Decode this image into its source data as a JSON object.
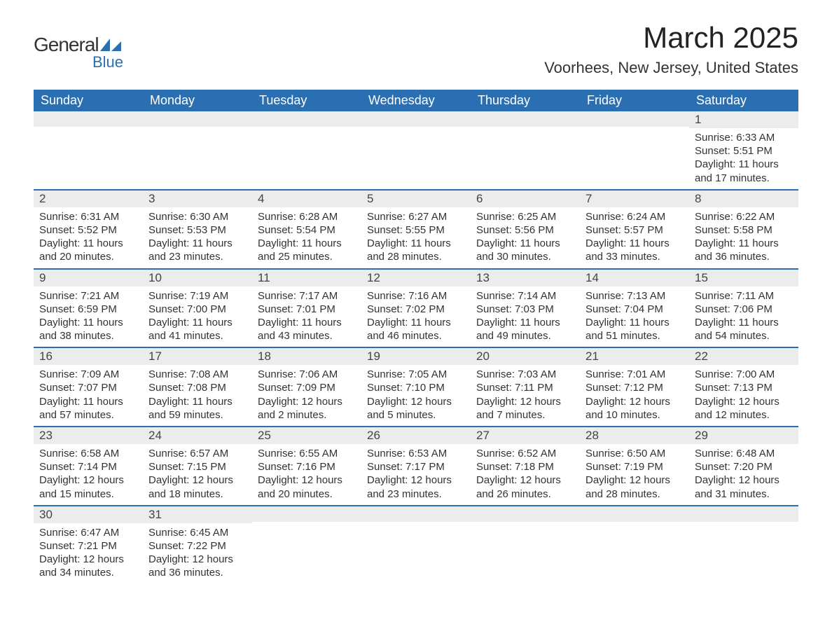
{
  "logo": {
    "text1": "General",
    "text2": "Blue",
    "shape_color": "#2b6fb3"
  },
  "title": "March 2025",
  "subtitle": "Voorhees, New Jersey, United States",
  "colors": {
    "header_bg": "#2b6fb3",
    "header_text": "#ffffff",
    "daynum_bg": "#ececec",
    "row_border": "#2b6fb3",
    "body_text": "#333333",
    "background": "#ffffff"
  },
  "weekdays": [
    "Sunday",
    "Monday",
    "Tuesday",
    "Wednesday",
    "Thursday",
    "Friday",
    "Saturday"
  ],
  "weeks": [
    [
      null,
      null,
      null,
      null,
      null,
      null,
      {
        "day": "1",
        "sunrise": "Sunrise: 6:33 AM",
        "sunset": "Sunset: 5:51 PM",
        "d1": "Daylight: 11 hours",
        "d2": "and 17 minutes."
      }
    ],
    [
      {
        "day": "2",
        "sunrise": "Sunrise: 6:31 AM",
        "sunset": "Sunset: 5:52 PM",
        "d1": "Daylight: 11 hours",
        "d2": "and 20 minutes."
      },
      {
        "day": "3",
        "sunrise": "Sunrise: 6:30 AM",
        "sunset": "Sunset: 5:53 PM",
        "d1": "Daylight: 11 hours",
        "d2": "and 23 minutes."
      },
      {
        "day": "4",
        "sunrise": "Sunrise: 6:28 AM",
        "sunset": "Sunset: 5:54 PM",
        "d1": "Daylight: 11 hours",
        "d2": "and 25 minutes."
      },
      {
        "day": "5",
        "sunrise": "Sunrise: 6:27 AM",
        "sunset": "Sunset: 5:55 PM",
        "d1": "Daylight: 11 hours",
        "d2": "and 28 minutes."
      },
      {
        "day": "6",
        "sunrise": "Sunrise: 6:25 AM",
        "sunset": "Sunset: 5:56 PM",
        "d1": "Daylight: 11 hours",
        "d2": "and 30 minutes."
      },
      {
        "day": "7",
        "sunrise": "Sunrise: 6:24 AM",
        "sunset": "Sunset: 5:57 PM",
        "d1": "Daylight: 11 hours",
        "d2": "and 33 minutes."
      },
      {
        "day": "8",
        "sunrise": "Sunrise: 6:22 AM",
        "sunset": "Sunset: 5:58 PM",
        "d1": "Daylight: 11 hours",
        "d2": "and 36 minutes."
      }
    ],
    [
      {
        "day": "9",
        "sunrise": "Sunrise: 7:21 AM",
        "sunset": "Sunset: 6:59 PM",
        "d1": "Daylight: 11 hours",
        "d2": "and 38 minutes."
      },
      {
        "day": "10",
        "sunrise": "Sunrise: 7:19 AM",
        "sunset": "Sunset: 7:00 PM",
        "d1": "Daylight: 11 hours",
        "d2": "and 41 minutes."
      },
      {
        "day": "11",
        "sunrise": "Sunrise: 7:17 AM",
        "sunset": "Sunset: 7:01 PM",
        "d1": "Daylight: 11 hours",
        "d2": "and 43 minutes."
      },
      {
        "day": "12",
        "sunrise": "Sunrise: 7:16 AM",
        "sunset": "Sunset: 7:02 PM",
        "d1": "Daylight: 11 hours",
        "d2": "and 46 minutes."
      },
      {
        "day": "13",
        "sunrise": "Sunrise: 7:14 AM",
        "sunset": "Sunset: 7:03 PM",
        "d1": "Daylight: 11 hours",
        "d2": "and 49 minutes."
      },
      {
        "day": "14",
        "sunrise": "Sunrise: 7:13 AM",
        "sunset": "Sunset: 7:04 PM",
        "d1": "Daylight: 11 hours",
        "d2": "and 51 minutes."
      },
      {
        "day": "15",
        "sunrise": "Sunrise: 7:11 AM",
        "sunset": "Sunset: 7:06 PM",
        "d1": "Daylight: 11 hours",
        "d2": "and 54 minutes."
      }
    ],
    [
      {
        "day": "16",
        "sunrise": "Sunrise: 7:09 AM",
        "sunset": "Sunset: 7:07 PM",
        "d1": "Daylight: 11 hours",
        "d2": "and 57 minutes."
      },
      {
        "day": "17",
        "sunrise": "Sunrise: 7:08 AM",
        "sunset": "Sunset: 7:08 PM",
        "d1": "Daylight: 11 hours",
        "d2": "and 59 minutes."
      },
      {
        "day": "18",
        "sunrise": "Sunrise: 7:06 AM",
        "sunset": "Sunset: 7:09 PM",
        "d1": "Daylight: 12 hours",
        "d2": "and 2 minutes."
      },
      {
        "day": "19",
        "sunrise": "Sunrise: 7:05 AM",
        "sunset": "Sunset: 7:10 PM",
        "d1": "Daylight: 12 hours",
        "d2": "and 5 minutes."
      },
      {
        "day": "20",
        "sunrise": "Sunrise: 7:03 AM",
        "sunset": "Sunset: 7:11 PM",
        "d1": "Daylight: 12 hours",
        "d2": "and 7 minutes."
      },
      {
        "day": "21",
        "sunrise": "Sunrise: 7:01 AM",
        "sunset": "Sunset: 7:12 PM",
        "d1": "Daylight: 12 hours",
        "d2": "and 10 minutes."
      },
      {
        "day": "22",
        "sunrise": "Sunrise: 7:00 AM",
        "sunset": "Sunset: 7:13 PM",
        "d1": "Daylight: 12 hours",
        "d2": "and 12 minutes."
      }
    ],
    [
      {
        "day": "23",
        "sunrise": "Sunrise: 6:58 AM",
        "sunset": "Sunset: 7:14 PM",
        "d1": "Daylight: 12 hours",
        "d2": "and 15 minutes."
      },
      {
        "day": "24",
        "sunrise": "Sunrise: 6:57 AM",
        "sunset": "Sunset: 7:15 PM",
        "d1": "Daylight: 12 hours",
        "d2": "and 18 minutes."
      },
      {
        "day": "25",
        "sunrise": "Sunrise: 6:55 AM",
        "sunset": "Sunset: 7:16 PM",
        "d1": "Daylight: 12 hours",
        "d2": "and 20 minutes."
      },
      {
        "day": "26",
        "sunrise": "Sunrise: 6:53 AM",
        "sunset": "Sunset: 7:17 PM",
        "d1": "Daylight: 12 hours",
        "d2": "and 23 minutes."
      },
      {
        "day": "27",
        "sunrise": "Sunrise: 6:52 AM",
        "sunset": "Sunset: 7:18 PM",
        "d1": "Daylight: 12 hours",
        "d2": "and 26 minutes."
      },
      {
        "day": "28",
        "sunrise": "Sunrise: 6:50 AM",
        "sunset": "Sunset: 7:19 PM",
        "d1": "Daylight: 12 hours",
        "d2": "and 28 minutes."
      },
      {
        "day": "29",
        "sunrise": "Sunrise: 6:48 AM",
        "sunset": "Sunset: 7:20 PM",
        "d1": "Daylight: 12 hours",
        "d2": "and 31 minutes."
      }
    ],
    [
      {
        "day": "30",
        "sunrise": "Sunrise: 6:47 AM",
        "sunset": "Sunset: 7:21 PM",
        "d1": "Daylight: 12 hours",
        "d2": "and 34 minutes."
      },
      {
        "day": "31",
        "sunrise": "Sunrise: 6:45 AM",
        "sunset": "Sunset: 7:22 PM",
        "d1": "Daylight: 12 hours",
        "d2": "and 36 minutes."
      },
      null,
      null,
      null,
      null,
      null
    ]
  ]
}
